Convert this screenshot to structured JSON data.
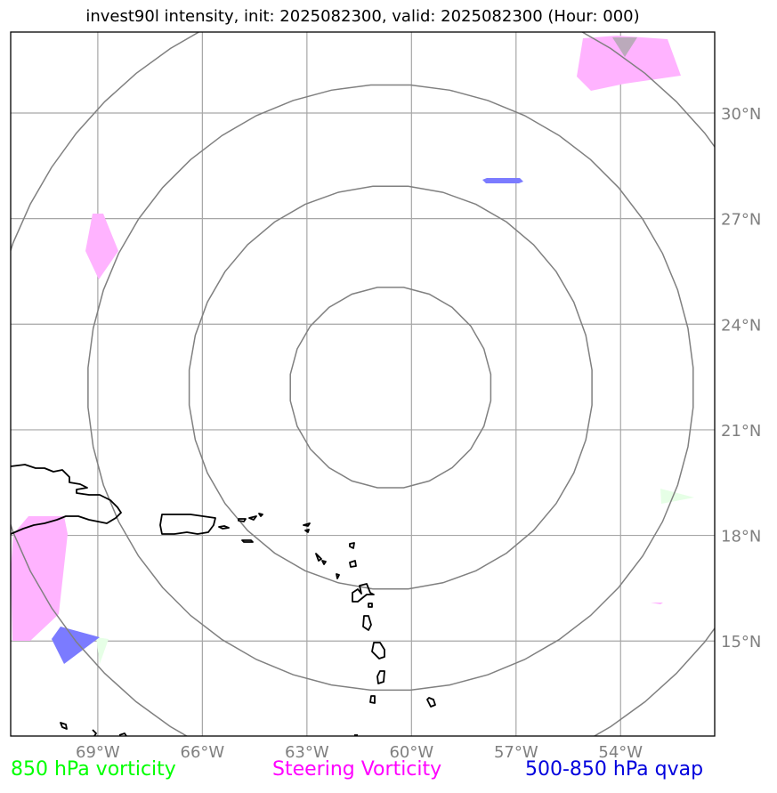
{
  "title": "invest90l intensity, init: 2025082300, valid: 2025082300 (Hour: 000)",
  "map": {
    "lon_range": [
      -71.5,
      -51.3
    ],
    "lat_range": [
      12.3,
      32.3
    ],
    "lat_gridlines": [
      15,
      18,
      21,
      24,
      27,
      30
    ],
    "lon_gridlines": [
      -69,
      -66,
      -63,
      -60,
      -57,
      -54
    ],
    "lat_labels": [
      "15°N",
      "18°N",
      "21°N",
      "24°N",
      "27°N",
      "30°N"
    ],
    "lon_labels": [
      "69°W",
      "66°W",
      "63°W",
      "60°W",
      "57°W",
      "54°W"
    ],
    "range_rings": {
      "center": {
        "lon": -60.6,
        "lat": 22.2
      },
      "radii_deg": [
        2.9,
        5.8,
        8.7,
        11.6
      ]
    }
  },
  "legend": {
    "vorticity_850": {
      "label": "850 hPa vorticity",
      "color": "#00ff00"
    },
    "steering_vorticity": {
      "label": "Steering Vorticity",
      "color": "#ff00ff"
    },
    "qvap": {
      "label": "500-850 hPa qvap",
      "color": "#0000dd"
    }
  },
  "colors": {
    "steering_fill": "#ffb3ff",
    "qvap_fill": "#7b7bff",
    "vort850_fill": "#e6ffe6",
    "gridline": "#a6a6a6",
    "ring": "#808080",
    "coastline": "#000000"
  }
}
